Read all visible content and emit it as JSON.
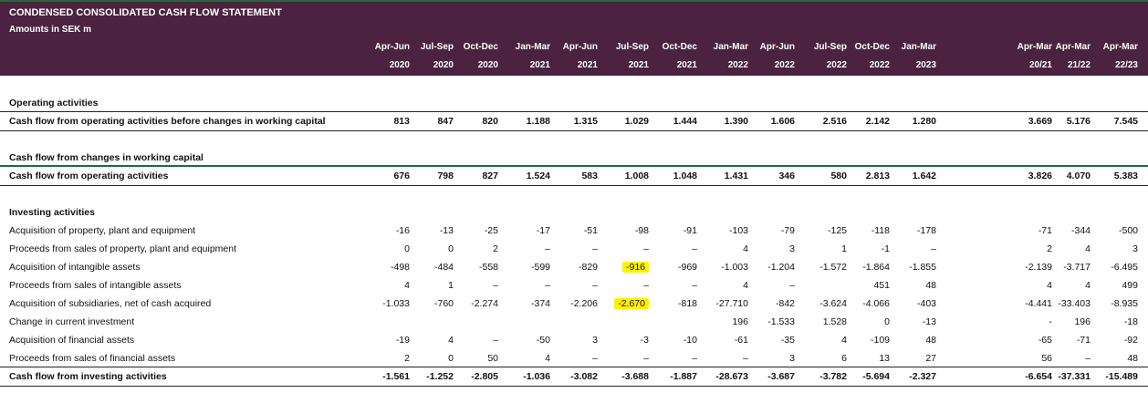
{
  "header": {
    "title": "CONDENSED CONSOLIDATED CASH FLOW STATEMENT",
    "subtitle": "Amounts in SEK m",
    "columns": [
      {
        "period": "Apr-Jun",
        "year": "2020"
      },
      {
        "period": "Jul-Sep",
        "year": "2020"
      },
      {
        "period": "Oct-Dec",
        "year": "2020"
      },
      {
        "period": "Jan-Mar",
        "year": "2021"
      },
      {
        "period": "Apr-Jun",
        "year": "2021"
      },
      {
        "period": "Jul-Sep",
        "year": "2021"
      },
      {
        "period": "Oct-Dec",
        "year": "2021"
      },
      {
        "period": "Jan-Mar",
        "year": "2022"
      },
      {
        "period": "Apr-Jun",
        "year": "2022"
      },
      {
        "period": "Jul-Sep",
        "year": "2022"
      },
      {
        "period": "Oct-Dec",
        "year": "2022"
      },
      {
        "period": "Jan-Mar",
        "year": "2023"
      },
      {
        "period": "Apr-Mar",
        "year": "20/21"
      },
      {
        "period": "Apr-Mar",
        "year": "21/22"
      },
      {
        "period": "Apr-Mar",
        "year": "22/23"
      }
    ]
  },
  "rows": [
    {
      "label": "Operating activities",
      "type": "section",
      "values": []
    },
    {
      "label": "Cash flow from operating activities before changes in working capital",
      "type": "total",
      "values": [
        "813",
        "847",
        "820",
        "1.188",
        "1.315",
        "1.029",
        "1.444",
        "1.390",
        "1.606",
        "2.516",
        "2.142",
        "1.280",
        "3.669",
        "5.176",
        "7.545"
      ]
    },
    {
      "label": "Cash flow from changes in working capital",
      "type": "section",
      "values": []
    },
    {
      "label": "Cash flow from operating activities",
      "type": "total",
      "values": [
        "676",
        "798",
        "827",
        "1.524",
        "583",
        "1.008",
        "1.048",
        "1.431",
        "346",
        "580",
        "2.813",
        "1.642",
        "3.826",
        "4.070",
        "5.383"
      ]
    },
    {
      "label": "Investing activities",
      "type": "section",
      "values": []
    },
    {
      "label": "Acquisition of property, plant and equipment",
      "type": "line",
      "values": [
        "-16",
        "-13",
        "-25",
        "-17",
        "-51",
        "-98",
        "-91",
        "-103",
        "-79",
        "-125",
        "-118",
        "-178",
        "-71",
        "-344",
        "-500"
      ]
    },
    {
      "label": "Proceeds from sales of property, plant and equipment",
      "type": "line",
      "values": [
        "0",
        "0",
        "2",
        "–",
        "–",
        "–",
        "–",
        "4",
        "3",
        "1",
        "-1",
        "–",
        "2",
        "4",
        "3"
      ]
    },
    {
      "label": "Acquisition of intangible assets",
      "type": "line",
      "values": [
        "-498",
        "-484",
        "-558",
        "-599",
        "-829",
        "-916",
        "-969",
        "-1.003",
        "-1.204",
        "-1.572",
        "-1.864",
        "-1.855",
        "-2.139",
        "-3.717",
        "-6.495"
      ]
    },
    {
      "label": "Proceeds from sales of intangible assets",
      "type": "line",
      "values": [
        "4",
        "1",
        "–",
        "–",
        "–",
        "–",
        "–",
        "4",
        "–",
        "",
        "451",
        "48",
        "4",
        "4",
        "499"
      ]
    },
    {
      "label": "Acquisition of subsidiaries, net of cash acquired",
      "type": "line",
      "values": [
        "-1.033",
        "-760",
        "-2.274",
        "-374",
        "-2.206",
        "-2.670",
        "-818",
        "-27.710",
        "-842",
        "-3.624",
        "-4.066",
        "-403",
        "-4.441",
        "-33.403",
        "-8.935"
      ]
    },
    {
      "label": "Change in current investment",
      "type": "line",
      "values": [
        "",
        "",
        "",
        "",
        "",
        "",
        "",
        "196",
        "-1.533",
        "1.528",
        "0",
        "-13",
        "-",
        "196",
        "-18"
      ]
    },
    {
      "label": "Acquisition of financial assets",
      "type": "line",
      "values": [
        "-19",
        "4",
        "–",
        "-50",
        "3",
        "-3",
        "-10",
        "-61",
        "-35",
        "4",
        "-109",
        "48",
        "-65",
        "-71",
        "-92"
      ]
    },
    {
      "label": "Proceeds from sales of financial assets",
      "type": "line",
      "values": [
        "2",
        "0",
        "50",
        "4",
        "–",
        "–",
        "–",
        "–",
        "3",
        "6",
        "13",
        "27",
        "56",
        "–",
        "48"
      ]
    },
    {
      "label": "Cash flow from investing activities",
      "type": "total",
      "values": [
        "-1.561",
        "-1.252",
        "-2.805",
        "-1.036",
        "-3.082",
        "-3.688",
        "-1.887",
        "-28.673",
        "-3.687",
        "-3.782",
        "-5.694",
        "-2.327",
        "-6.654",
        "-37.331",
        "-15.489"
      ]
    }
  ],
  "highlights": [
    "7:5",
    "9:5"
  ],
  "colors": {
    "header_bg": "#4b2340",
    "accent_line": "#1f6b3a",
    "highlight": "#fff200"
  }
}
